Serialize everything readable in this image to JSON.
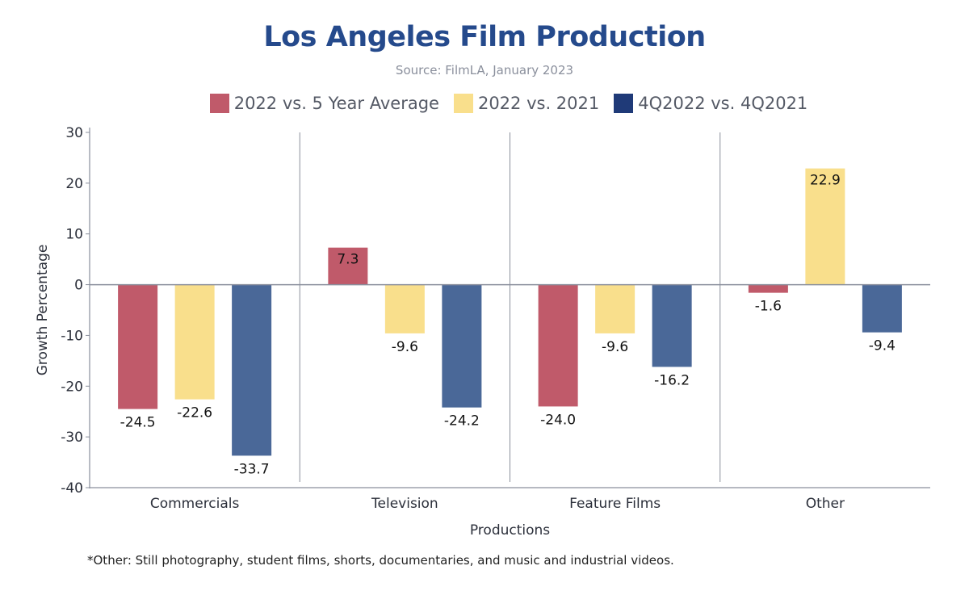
{
  "chart_data": {
    "type": "bar",
    "title": "Los Angeles Film Production",
    "subtitle": "Source: FilmLA, January 2023",
    "xlabel": "Productions",
    "ylabel": "Growth Percentage",
    "ylim": [
      -40,
      30
    ],
    "yticks": [
      "30",
      "20",
      "10",
      "0",
      "-10",
      "-20",
      "-30",
      "-40"
    ],
    "yticks_values": [
      30,
      20,
      10,
      0,
      -10,
      -20,
      -30,
      -40
    ],
    "grid": false,
    "legend_position": "top-center",
    "categories": [
      "Commercials",
      "Television",
      "Feature Films",
      "Other"
    ],
    "series": [
      {
        "name": "2022 vs. 5 Year Average",
        "color": "#c05a6a",
        "values": [
          -24.5,
          7.3,
          -24.0,
          -1.6
        ],
        "labels": [
          "-24.5",
          "7.3",
          "-24.0",
          "-1.6"
        ]
      },
      {
        "name": "2022 vs. 2021",
        "color": "#f9df8c",
        "values": [
          -22.6,
          -9.6,
          -9.6,
          22.9
        ],
        "labels": [
          "-22.6",
          "-9.6",
          "-9.6",
          "22.9"
        ]
      },
      {
        "name": "4Q2022 vs. 4Q2021",
        "color": "#4a6898",
        "values": [
          -33.7,
          -24.2,
          -16.2,
          -9.4
        ],
        "labels": [
          "-33.7",
          "-24.2",
          "-16.2",
          "-9.4"
        ]
      }
    ],
    "legend_swatch_colors": [
      "#c05a6a",
      "#f9df8c",
      "#1f3a78"
    ]
  },
  "footnote": "*Other: Still photography, student films, shorts, documentaries, and music and industrial videos."
}
